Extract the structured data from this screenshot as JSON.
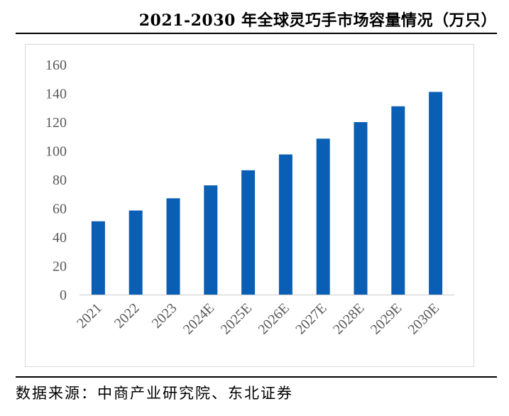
{
  "header": {
    "title": "2021-2030 年全球灵巧手市场容量情况（万只）"
  },
  "footer": {
    "source": "数据来源：中商产业研究院、东北证券"
  },
  "chart_data": {
    "type": "bar",
    "title": "2021-2030 年全球灵巧手市场容量情况（万只）",
    "categories": [
      "2021",
      "2022",
      "2023",
      "2024E",
      "2025E",
      "2026E",
      "2027E",
      "2028E",
      "2029E",
      "2030E"
    ],
    "values": [
      51,
      58.5,
      67,
      76,
      86.5,
      97.5,
      108.5,
      120,
      131,
      141
    ],
    "yticks": [
      0,
      20,
      40,
      60,
      80,
      100,
      120,
      140,
      160
    ],
    "ylim": [
      0,
      160
    ],
    "xlabel": "",
    "ylabel": "",
    "grid": false,
    "bar_color": "#0a5fb4",
    "axis_color": "#d9d9d9"
  }
}
